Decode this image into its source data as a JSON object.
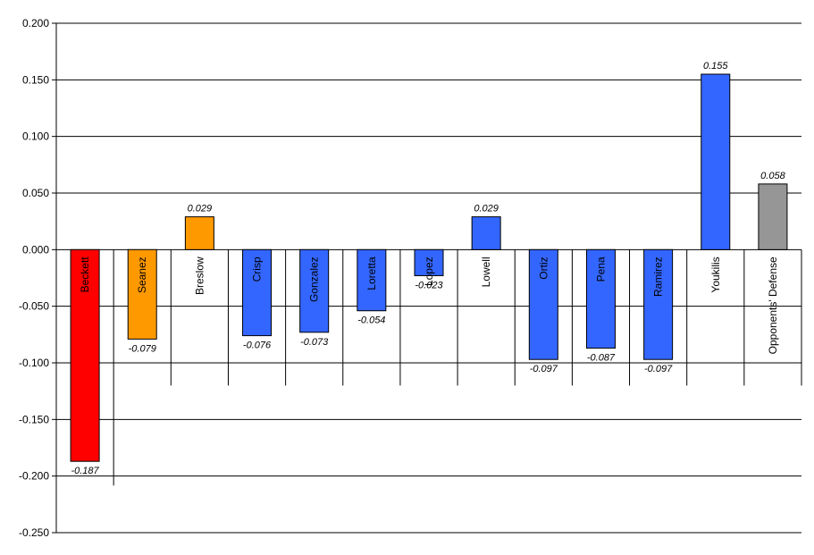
{
  "chart_data": {
    "type": "bar",
    "title": "",
    "xlabel": "",
    "ylabel": "",
    "ylim": [
      -0.25,
      0.2
    ],
    "ytick_step": 0.05,
    "ytick_labels": [
      "0.200",
      "0.150",
      "0.100",
      "0.050",
      "0.000",
      "-0.050",
      "-0.100",
      "-0.150",
      "-0.200",
      "-0.250"
    ],
    "grid": true,
    "legend": "none",
    "categories": [
      "Beckett",
      "Seanez",
      "Breslow",
      "Crisp",
      "Gonzalez",
      "Loretta",
      "Lopez",
      "Lowell",
      "Ortiz",
      "Pena",
      "Ramirez",
      "Youkilis",
      "Opponents' Defense"
    ],
    "values": [
      -0.187,
      -0.079,
      0.029,
      -0.076,
      -0.073,
      -0.054,
      -0.023,
      0.029,
      -0.097,
      -0.087,
      -0.097,
      0.155,
      0.058
    ],
    "value_labels": [
      "-0.187",
      "-0.079",
      "0.029",
      "-0.076",
      "-0.073",
      "-0.054",
      "-0.023",
      "0.029",
      "-0.097",
      "-0.087",
      "-0.097",
      "0.155",
      "0.058"
    ],
    "bar_colors": [
      "#ff0000",
      "#ff9900",
      "#ff9900",
      "#3366ff",
      "#3366ff",
      "#3366ff",
      "#3366ff",
      "#3366ff",
      "#3366ff",
      "#3366ff",
      "#3366ff",
      "#3366ff",
      "#969696"
    ]
  }
}
